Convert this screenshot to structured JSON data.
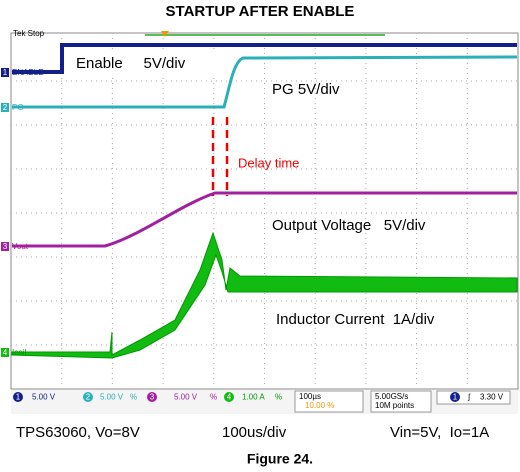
{
  "title": "STARTUP AFTER ENABLE",
  "scope": {
    "status": "Tek Stop",
    "channels": [
      {
        "number": "1",
        "label": "ENABLE"
      },
      {
        "number": "2",
        "label": "PG"
      },
      {
        "number": "3",
        "label": "Vout"
      },
      {
        "number": "4",
        "label": "Icoil"
      }
    ],
    "annotations": {
      "enable": "Enable     5V/div",
      "pg": "PG 5V/div",
      "delay": "Delay time",
      "vout": "Output Voltage   5V/div",
      "icoil": "Inductor Current  1A/div"
    },
    "status_bar": {
      "ch1": [
        "1",
        "5.00 V"
      ],
      "ch2": [
        "2",
        "5.00 V",
        "%"
      ],
      "ch3": [
        "3",
        "5.00 V",
        "%"
      ],
      "ch4": [
        "4",
        "1.00 A",
        "%"
      ],
      "timebase": "100µs",
      "trigger_pos": "10.00 %",
      "sample_rate": "5.00GS/s",
      "record": "10M points",
      "trigger_ch": "1",
      "trigger_level": "3.30 V"
    }
  },
  "caption": {
    "left": "TPS63060, Vo=8V",
    "center": "100us/div",
    "right": "Vin=5V,  Io=1A",
    "figure": "Figure 24."
  }
}
